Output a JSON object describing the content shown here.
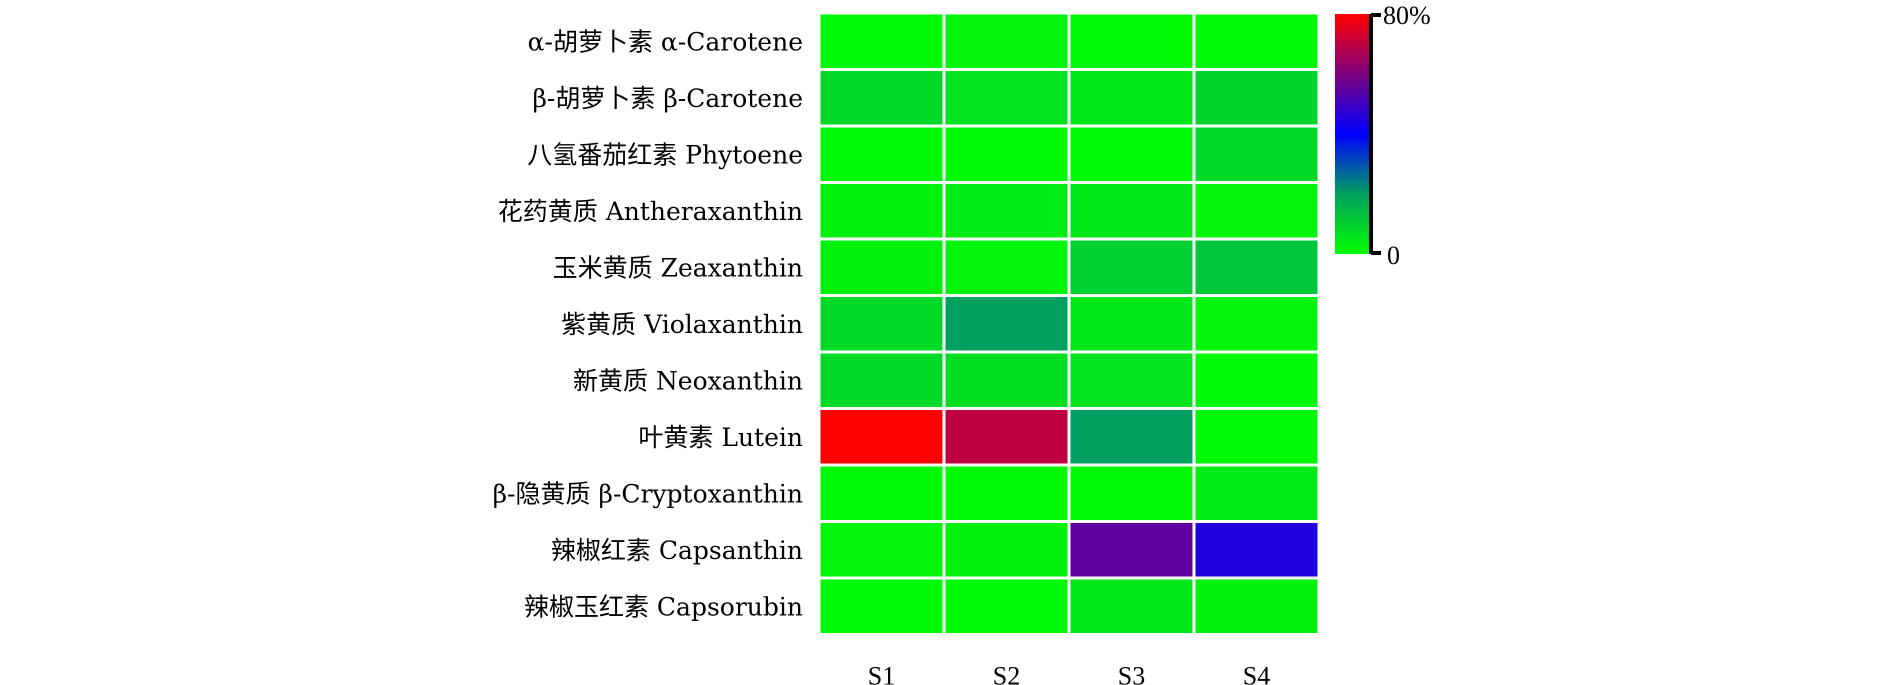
{
  "chart_data": {
    "type": "heatmap",
    "rows": [
      "α-胡萝卜素 α-Carotene",
      "β-胡萝卜素  β-Carotene",
      "八氢番茄红素  Phytoene",
      "花药黄质  Antheraxanthin",
      "玉米黄质  Zeaxanthin",
      "紫黄质  Violaxanthin",
      "新黄质  Neoxanthin",
      "叶黄素  Lutein",
      "β-隐黄质  β-Cryptoxanthin",
      "辣椒红素 Capsanthin",
      "辣椒玉红素 Capsorubin"
    ],
    "columns": [
      "S1",
      "S2",
      "S3",
      "S4"
    ],
    "values": [
      [
        1,
        2,
        1,
        1
      ],
      [
        8,
        6,
        5,
        9
      ],
      [
        1,
        1,
        1,
        8
      ],
      [
        3,
        4,
        5,
        2
      ],
      [
        3,
        2,
        10,
        12
      ],
      [
        8,
        20,
        5,
        2
      ],
      [
        8,
        7,
        6,
        1
      ],
      [
        80,
        70,
        20,
        1
      ],
      [
        1,
        1,
        1,
        4
      ],
      [
        2,
        3,
        55,
        45
      ],
      [
        1,
        1,
        5,
        3
      ]
    ],
    "color_scale": {
      "min": 0,
      "max": 80,
      "min_label": "0",
      "max_label": "80%",
      "stops": [
        "#00ff00",
        "#00a060",
        "#0000ff",
        "#7f0080",
        "#ff0000"
      ]
    }
  }
}
